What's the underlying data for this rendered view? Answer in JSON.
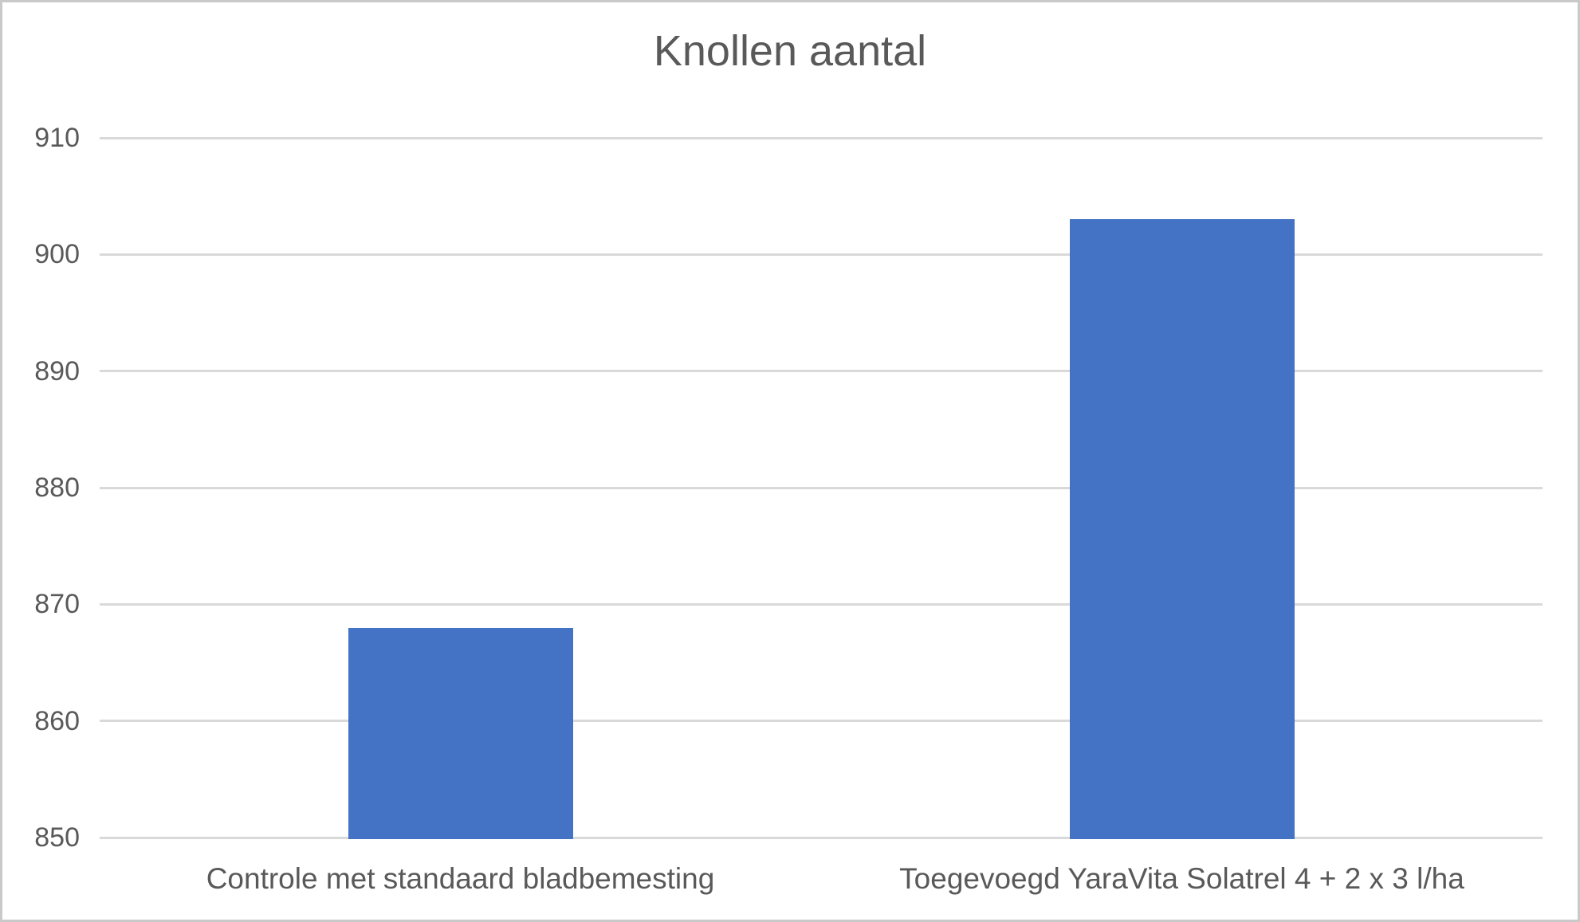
{
  "window": {
    "background": "#ffffff",
    "border_color": "#c9c9c9"
  },
  "chart_data": {
    "type": "bar",
    "title": "Knollen aantal",
    "categories": [
      "Controle met standaard bladbemesting",
      "Toegevoegd YaraVita Solatrel 4 + 2 x 3 l/ha"
    ],
    "values": [
      868,
      903
    ],
    "yticks": [
      850,
      860,
      870,
      880,
      890,
      900,
      910
    ],
    "ylim": [
      850,
      910
    ],
    "xlabel": "",
    "ylabel": "",
    "grid": true,
    "legend_position": "none",
    "bar_color": "#4472c4",
    "gridline_color": "#d9d9d9",
    "text_color": "#595959"
  }
}
